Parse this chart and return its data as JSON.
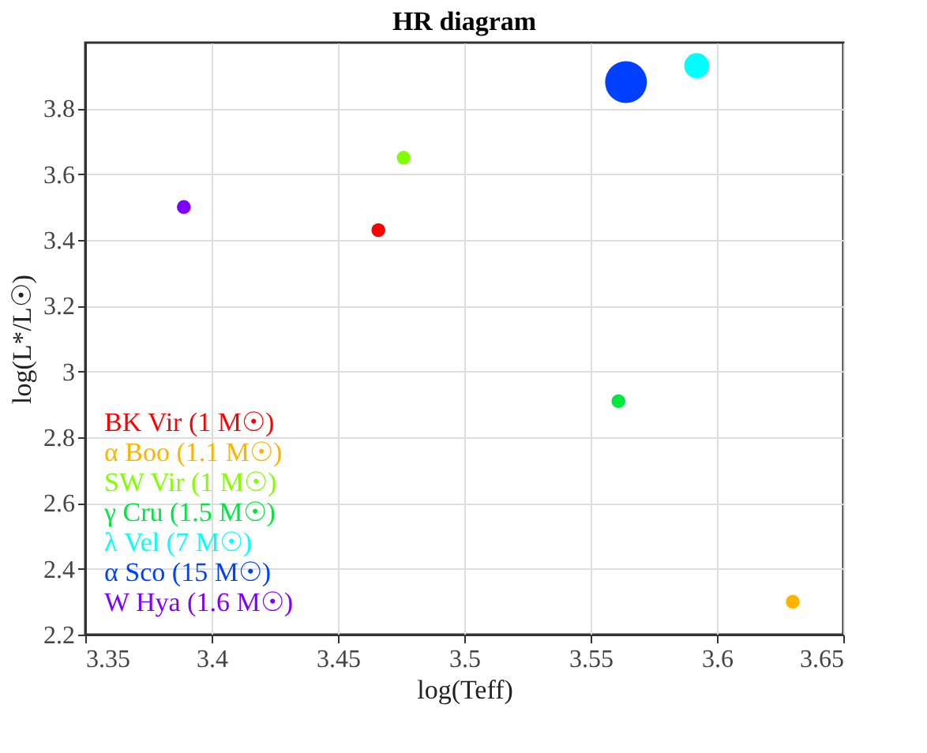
{
  "chart_data": {
    "type": "bubble",
    "title": "HR diagram",
    "xlabel": "log(Teff)",
    "ylabel": "log(L*/L☉)",
    "xlim": [
      3.35,
      3.65
    ],
    "xticks": [
      3.35,
      3.4,
      3.45,
      3.5,
      3.55,
      3.6,
      3.65
    ],
    "ylim": [
      2.2,
      4.0
    ],
    "yticks": [
      2.2,
      2.4,
      2.6,
      2.8,
      3,
      3.2,
      3.4,
      3.6,
      3.8
    ],
    "grid": true,
    "legend": "bottom left",
    "series": [
      {
        "name": "BK Vir (1 M☉)",
        "color": "#ff0000",
        "x": [
          3.466
        ],
        "values": [
          3.43
        ],
        "sizes": [
          0.11
        ]
      },
      {
        "name": "α Boo (1.1 M☉)",
        "color": "#ffb300",
        "x": [
          3.63
        ],
        "values": [
          2.3
        ],
        "sizes": [
          0.11
        ]
      },
      {
        "name": "SW Vir (1 M☉)",
        "color": "#80ff00",
        "x": [
          3.476
        ],
        "values": [
          3.65
        ],
        "sizes": [
          0.11
        ]
      },
      {
        "name": "γ Cru (1.5 M☉)",
        "color": "#00e640",
        "x": [
          3.561
        ],
        "values": [
          2.91
        ],
        "sizes": [
          0.11
        ]
      },
      {
        "name": "λ Vel (7 M☉)",
        "color": "#00ffff",
        "x": [
          3.592
        ],
        "values": [
          3.93
        ],
        "sizes": [
          0.36
        ]
      },
      {
        "name": "α Sco (15 M☉)",
        "color": "#0040ff",
        "x": [
          3.564
        ],
        "values": [
          3.88
        ],
        "sizes": [
          1
        ]
      },
      {
        "name": "W Hya (1.6 M☉)",
        "color": "#8000ff",
        "x": [
          3.389
        ],
        "values": [
          3.5
        ],
        "sizes": [
          0.11
        ]
      }
    ]
  }
}
